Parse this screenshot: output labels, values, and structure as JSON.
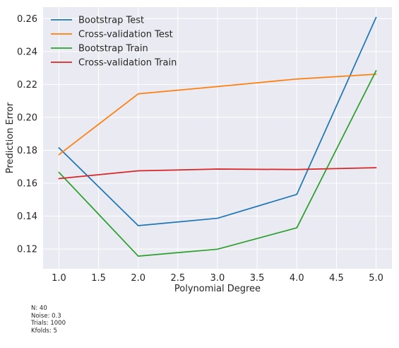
{
  "chart_data": {
    "type": "line",
    "title": "",
    "xlabel": "Polynomial Degree",
    "ylabel": "Prediction Error",
    "x": [
      1.0,
      2.0,
      3.0,
      4.0,
      5.0
    ],
    "xlim": [
      0.8,
      5.2
    ],
    "ylim": [
      0.108,
      0.267
    ],
    "xticks": [
      "1.0",
      "1.5",
      "2.0",
      "2.5",
      "3.0",
      "3.5",
      "4.0",
      "4.5",
      "5.0"
    ],
    "yticks": [
      "0.12",
      "0.14",
      "0.16",
      "0.18",
      "0.20",
      "0.22",
      "0.24",
      "0.26"
    ],
    "grid": true,
    "legend_position": "top-left",
    "series": [
      {
        "name": "Bootstrap Test",
        "color": "#1f77b4",
        "values": [
          0.1815,
          0.1342,
          0.1387,
          0.1532,
          0.2607
        ]
      },
      {
        "name": "Cross-validation Test",
        "color": "#ff7f0e",
        "values": [
          0.1773,
          0.2143,
          0.2187,
          0.2233,
          0.2262
        ]
      },
      {
        "name": "Bootstrap Train",
        "color": "#2ca02c",
        "values": [
          0.1666,
          0.1157,
          0.1199,
          0.1329,
          0.2283
        ]
      },
      {
        "name": "Cross-validation Train",
        "color": "#d62728",
        "values": [
          0.1628,
          0.1675,
          0.1686,
          0.1683,
          0.1694
        ]
      }
    ]
  },
  "footnote": {
    "n": "N: 40",
    "noise": "Noise: 0.3",
    "trials": "Trials: 1000",
    "kfolds": "Kfolds: 5"
  }
}
